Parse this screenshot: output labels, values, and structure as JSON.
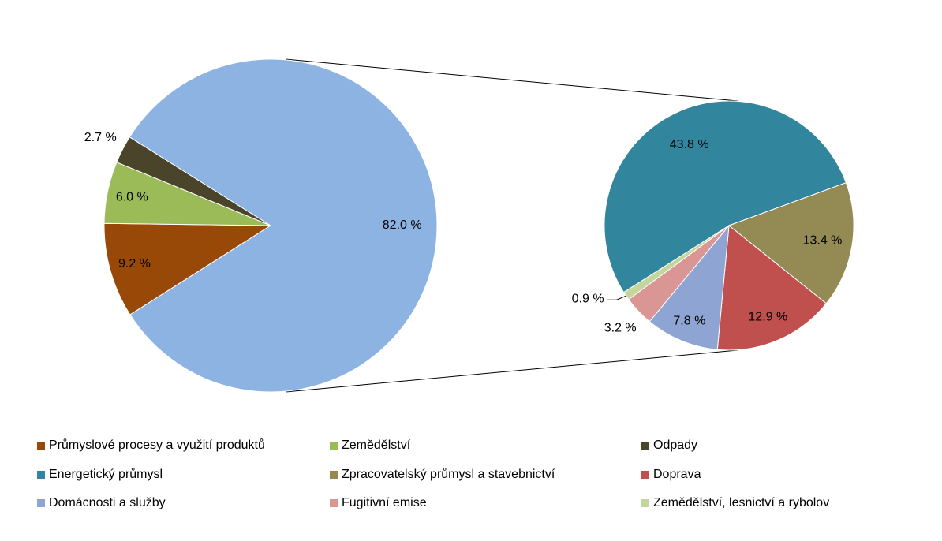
{
  "chart_data": [
    {
      "type": "pie",
      "categories": [
        "Průmyslové procesy a využití produktů",
        "Zemědělství",
        "Odpady",
        null
      ],
      "values": [
        9.2,
        6.0,
        2.7,
        82.0
      ],
      "value_labels": [
        "9.2 %",
        "6.0 %",
        "2.7 %",
        "82.0 %"
      ],
      "colors": [
        "#984807",
        "#9BBB59",
        "#4A452A",
        "#8DB3E2"
      ],
      "legend": "bottom"
    },
    {
      "type": "pie",
      "categories": [
        "Energetický průmysl",
        "Zpracovatelský průmysl a stavebnictví",
        "Doprava",
        "Domácnosti a služby",
        "Fugitivní emise",
        "Zemědělství, lesnictví a rybolov"
      ],
      "values": [
        43.8,
        13.4,
        12.9,
        7.8,
        3.2,
        0.9
      ],
      "value_labels": [
        "43.8 %",
        "13.4 %",
        "12.9 %",
        "7.8 %",
        "3.2 %",
        "0.9 %"
      ],
      "colors": [
        "#31859C",
        "#948A54",
        "#C0504D",
        "#8EA4D2",
        "#D99694",
        "#C3D69B"
      ],
      "legend": "bottom"
    }
  ]
}
